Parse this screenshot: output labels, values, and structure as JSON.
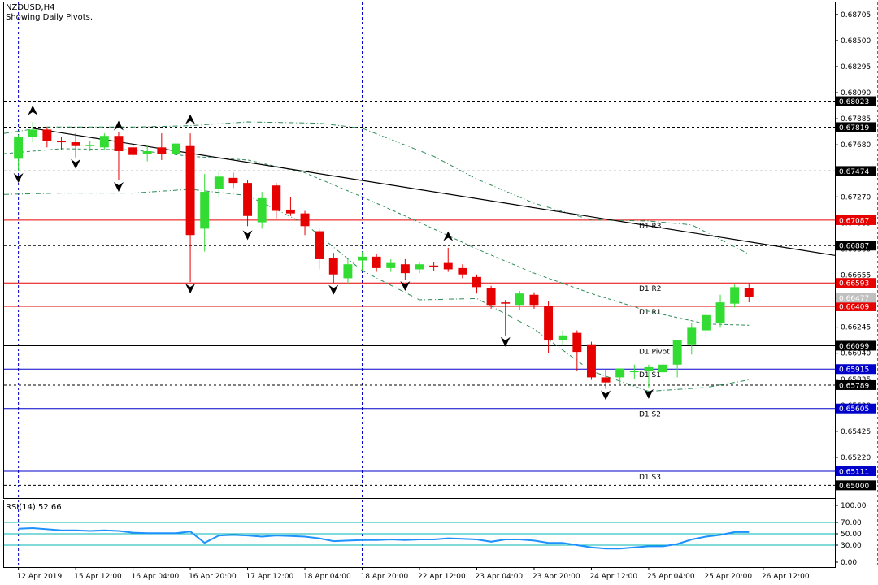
{
  "header": {
    "title": "NZDUSD,H4",
    "subtitle": "Showing Daily Pivots."
  },
  "chart_data": {
    "type": "candlestick",
    "ylim": [
      0.649,
      0.688
    ],
    "x_range": [
      -1,
      57
    ],
    "price_ticks": [
      "0.68705",
      "0.68500",
      "0.68295",
      "0.68090",
      "0.67885",
      "0.67680",
      "0.67475",
      "0.67270",
      "0.67065",
      "0.66860",
      "0.66655",
      "0.66450",
      "0.66245",
      "0.66040",
      "0.65835",
      "0.65630",
      "0.65425",
      "0.65220",
      "0.65015"
    ],
    "time_labels": [
      {
        "i": 0,
        "label": "12 Apr 2019"
      },
      {
        "i": 4,
        "label": "15 Apr 12:00"
      },
      {
        "i": 8,
        "label": "16 Apr 04:00"
      },
      {
        "i": 12,
        "label": "16 Apr 20:00"
      },
      {
        "i": 16,
        "label": "17 Apr 12:00"
      },
      {
        "i": 20,
        "label": "18 Apr 04:00"
      },
      {
        "i": 24,
        "label": "18 Apr 20:00"
      },
      {
        "i": 28,
        "label": "22 Apr 12:00"
      },
      {
        "i": 32,
        "label": "23 Apr 04:00"
      },
      {
        "i": 36,
        "label": "23 Apr 20:00"
      },
      {
        "i": 40,
        "label": "24 Apr 12:00"
      },
      {
        "i": 44,
        "label": "25 Apr 04:00"
      },
      {
        "i": 48,
        "label": "25 Apr 20:00"
      },
      {
        "i": 52,
        "label": "26 Apr 12:00"
      }
    ],
    "vertical_day_lines": [
      0,
      24,
      60
    ],
    "colors": {
      "bull": "#32dc32",
      "bear": "#e60000",
      "pivot_red": "#e60000",
      "pivot_black": "#000000",
      "pivot_blue": "#0000c8",
      "rsi": "#1e90ff",
      "rsi_levels": "#00b4b4",
      "bands": "#2e8b57"
    },
    "candles": [
      {
        "o": 0.6757,
        "h": 0.6776,
        "l": 0.6747,
        "c": 0.6774
      },
      {
        "o": 0.6774,
        "h": 0.6786,
        "l": 0.677,
        "c": 0.678
      },
      {
        "o": 0.678,
        "h": 0.6782,
        "l": 0.6766,
        "c": 0.6771
      },
      {
        "o": 0.6771,
        "h": 0.6774,
        "l": 0.6764,
        "c": 0.677
      },
      {
        "o": 0.677,
        "h": 0.6777,
        "l": 0.6758,
        "c": 0.6767
      },
      {
        "o": 0.6767,
        "h": 0.6771,
        "l": 0.6763,
        "c": 0.6768
      },
      {
        "o": 0.6766,
        "h": 0.6777,
        "l": 0.6764,
        "c": 0.6775
      },
      {
        "o": 0.6775,
        "h": 0.6778,
        "l": 0.674,
        "c": 0.6763
      },
      {
        "o": 0.6766,
        "h": 0.6769,
        "l": 0.6758,
        "c": 0.676
      },
      {
        "o": 0.6761,
        "h": 0.6768,
        "l": 0.6755,
        "c": 0.6763
      },
      {
        "o": 0.6766,
        "h": 0.6777,
        "l": 0.6756,
        "c": 0.6761
      },
      {
        "o": 0.6761,
        "h": 0.6775,
        "l": 0.6759,
        "c": 0.6769
      },
      {
        "o": 0.6767,
        "h": 0.6777,
        "l": 0.666,
        "c": 0.6697
      },
      {
        "o": 0.6702,
        "h": 0.6745,
        "l": 0.6684,
        "c": 0.6731
      },
      {
        "o": 0.6733,
        "h": 0.6747,
        "l": 0.6727,
        "c": 0.6743
      },
      {
        "o": 0.6742,
        "h": 0.6746,
        "l": 0.6734,
        "c": 0.6738
      },
      {
        "o": 0.6738,
        "h": 0.674,
        "l": 0.6704,
        "c": 0.6712
      },
      {
        "o": 0.6707,
        "h": 0.6731,
        "l": 0.6702,
        "c": 0.6726
      },
      {
        "o": 0.6736,
        "h": 0.6738,
        "l": 0.671,
        "c": 0.6716
      },
      {
        "o": 0.6717,
        "h": 0.6727,
        "l": 0.6712,
        "c": 0.6714
      },
      {
        "o": 0.6714,
        "h": 0.6716,
        "l": 0.6697,
        "c": 0.6704
      },
      {
        "o": 0.67,
        "h": 0.6702,
        "l": 0.667,
        "c": 0.6678
      },
      {
        "o": 0.6679,
        "h": 0.6683,
        "l": 0.6659,
        "c": 0.6666
      },
      {
        "o": 0.6663,
        "h": 0.6678,
        "l": 0.6659,
        "c": 0.6674
      },
      {
        "o": 0.6677,
        "h": 0.6684,
        "l": 0.6669,
        "c": 0.668
      },
      {
        "o": 0.668,
        "h": 0.6682,
        "l": 0.6668,
        "c": 0.6671
      },
      {
        "o": 0.6671,
        "h": 0.6678,
        "l": 0.6668,
        "c": 0.6675
      },
      {
        "o": 0.6674,
        "h": 0.6678,
        "l": 0.6662,
        "c": 0.6667
      },
      {
        "o": 0.667,
        "h": 0.6676,
        "l": 0.6667,
        "c": 0.6674
      },
      {
        "o": 0.6673,
        "h": 0.6676,
        "l": 0.6669,
        "c": 0.6672
      },
      {
        "o": 0.6675,
        "h": 0.6687,
        "l": 0.6668,
        "c": 0.667
      },
      {
        "o": 0.6671,
        "h": 0.6674,
        "l": 0.6663,
        "c": 0.6666
      },
      {
        "o": 0.6664,
        "h": 0.6666,
        "l": 0.6651,
        "c": 0.6656
      },
      {
        "o": 0.6655,
        "h": 0.6657,
        "l": 0.6639,
        "c": 0.6642
      },
      {
        "o": 0.6644,
        "h": 0.6646,
        "l": 0.6618,
        "c": 0.6643
      },
      {
        "o": 0.6642,
        "h": 0.6653,
        "l": 0.6638,
        "c": 0.6651
      },
      {
        "o": 0.665,
        "h": 0.6652,
        "l": 0.6639,
        "c": 0.6642
      },
      {
        "o": 0.6641,
        "h": 0.6645,
        "l": 0.6604,
        "c": 0.6614
      },
      {
        "o": 0.6614,
        "h": 0.6622,
        "l": 0.661,
        "c": 0.6618
      },
      {
        "o": 0.662,
        "h": 0.6622,
        "l": 0.659,
        "c": 0.6605
      },
      {
        "o": 0.6611,
        "h": 0.6613,
        "l": 0.6583,
        "c": 0.6585
      },
      {
        "o": 0.6585,
        "h": 0.6591,
        "l": 0.6576,
        "c": 0.6581
      },
      {
        "o": 0.6585,
        "h": 0.6592,
        "l": 0.6579,
        "c": 0.6592
      },
      {
        "o": 0.659,
        "h": 0.6595,
        "l": 0.6584,
        "c": 0.659
      },
      {
        "o": 0.659,
        "h": 0.6595,
        "l": 0.6577,
        "c": 0.6593
      },
      {
        "o": 0.6589,
        "h": 0.66,
        "l": 0.6582,
        "c": 0.6595
      },
      {
        "o": 0.6595,
        "h": 0.6614,
        "l": 0.6585,
        "c": 0.6614
      },
      {
        "o": 0.6611,
        "h": 0.6628,
        "l": 0.6603,
        "c": 0.6624
      },
      {
        "o": 0.6622,
        "h": 0.6636,
        "l": 0.6616,
        "c": 0.6634
      },
      {
        "o": 0.6628,
        "h": 0.665,
        "l": 0.6624,
        "c": 0.6644
      },
      {
        "o": 0.6643,
        "h": 0.6658,
        "l": 0.664,
        "c": 0.6656
      },
      {
        "o": 0.6655,
        "h": 0.6659,
        "l": 0.6644,
        "c": 0.6648
      }
    ],
    "fractals": [
      {
        "i": 1,
        "p": 0.679,
        "dir": "up"
      },
      {
        "i": 0,
        "p": 0.6747,
        "dir": "down"
      },
      {
        "i": 4,
        "p": 0.6758,
        "dir": "down"
      },
      {
        "i": 7,
        "p": 0.674,
        "dir": "down"
      },
      {
        "i": 7,
        "p": 0.6778,
        "dir": "up"
      },
      {
        "i": 12,
        "p": 0.6783,
        "dir": "up"
      },
      {
        "i": 12,
        "p": 0.666,
        "dir": "down"
      },
      {
        "i": 16,
        "p": 0.6702,
        "dir": "down"
      },
      {
        "i": 22,
        "p": 0.6659,
        "dir": "down"
      },
      {
        "i": 27,
        "p": 0.6662,
        "dir": "down"
      },
      {
        "i": 30,
        "p": 0.6691,
        "dir": "up"
      },
      {
        "i": 34,
        "p": 0.6618,
        "dir": "down"
      },
      {
        "i": 41,
        "p": 0.6576,
        "dir": "down"
      },
      {
        "i": 44,
        "p": 0.6577,
        "dir": "down"
      }
    ],
    "trendline": [
      {
        "i": 1,
        "p": 0.6781
      },
      {
        "i": 57,
        "p": 0.6681
      }
    ],
    "upper_band": [
      {
        "i": -1,
        "p": 0.6777
      },
      {
        "i": 2,
        "p": 0.6782
      },
      {
        "i": 8,
        "p": 0.6782
      },
      {
        "i": 12,
        "p": 0.6783
      },
      {
        "i": 16,
        "p": 0.6786
      },
      {
        "i": 21,
        "p": 0.6785
      },
      {
        "i": 24,
        "p": 0.6781
      },
      {
        "i": 29,
        "p": 0.6759
      },
      {
        "i": 32,
        "p": 0.6741
      },
      {
        "i": 36,
        "p": 0.6722
      },
      {
        "i": 40,
        "p": 0.6709
      },
      {
        "i": 44,
        "p": 0.6708
      },
      {
        "i": 47,
        "p": 0.6705
      },
      {
        "i": 51,
        "p": 0.6682
      }
    ],
    "middle_band": [
      {
        "i": -1,
        "p": 0.6761
      },
      {
        "i": 3,
        "p": 0.6765
      },
      {
        "i": 8,
        "p": 0.6764
      },
      {
        "i": 12,
        "p": 0.6759
      },
      {
        "i": 16,
        "p": 0.6756
      },
      {
        "i": 20,
        "p": 0.6746
      },
      {
        "i": 24,
        "p": 0.6727
      },
      {
        "i": 28,
        "p": 0.6707
      },
      {
        "i": 32,
        "p": 0.6686
      },
      {
        "i": 36,
        "p": 0.6667
      },
      {
        "i": 40,
        "p": 0.6651
      },
      {
        "i": 44,
        "p": 0.6637
      },
      {
        "i": 48,
        "p": 0.6627
      },
      {
        "i": 51,
        "p": 0.6626
      }
    ],
    "lower_band": [
      {
        "i": -1,
        "p": 0.6729
      },
      {
        "i": 3,
        "p": 0.673
      },
      {
        "i": 8,
        "p": 0.673
      },
      {
        "i": 12,
        "p": 0.6733
      },
      {
        "i": 16,
        "p": 0.6728
      },
      {
        "i": 20,
        "p": 0.6706
      },
      {
        "i": 24,
        "p": 0.6669
      },
      {
        "i": 28,
        "p": 0.6646
      },
      {
        "i": 32,
        "p": 0.6647
      },
      {
        "i": 36,
        "p": 0.6623
      },
      {
        "i": 40,
        "p": 0.659
      },
      {
        "i": 44,
        "p": 0.6574
      },
      {
        "i": 48,
        "p": 0.6577
      },
      {
        "i": 51,
        "p": 0.6583
      }
    ],
    "pivot_levels": [
      {
        "label": "D1 R3",
        "value": 0.67087,
        "tag": "0.67087",
        "color": "red",
        "style": "solid"
      },
      {
        "label": "D1 R2",
        "value": 0.66593,
        "tag": "0.66593",
        "color": "red",
        "style": "solid"
      },
      {
        "label": "D1 R1",
        "value": 0.66409,
        "tag": "0.66409",
        "color": "red",
        "style": "solid"
      },
      {
        "label": "D1 Pivot",
        "value": 0.66099,
        "tag": "0.66099",
        "color": "black",
        "style": "solid"
      },
      {
        "label": "D1 S1",
        "value": 0.65915,
        "tag": "0.65915",
        "color": "blue",
        "style": "solid"
      },
      {
        "label": "D1 S2",
        "value": 0.65605,
        "tag": "0.65605",
        "color": "blue",
        "style": "solid"
      },
      {
        "label": "D1 S3",
        "value": 0.65111,
        "tag": "0.65111",
        "color": "blue",
        "style": "solid"
      }
    ],
    "dashed_levels": [
      {
        "value": 0.68023,
        "tag": "0.68023"
      },
      {
        "value": 0.67819,
        "tag": "0.67819"
      },
      {
        "value": 0.67474,
        "tag": "0.67474"
      },
      {
        "value": 0.66887,
        "tag": "0.66887"
      },
      {
        "value": 0.65789,
        "tag": "0.65789"
      },
      {
        "value": 0.65,
        "tag": "0.65000"
      }
    ],
    "current_price": {
      "value": 0.66477,
      "tag": "0.66477"
    },
    "rsi": {
      "label": "RSI(14) 52.66",
      "ylim": [
        0,
        100
      ],
      "ticks": [
        "100.00",
        "70.00",
        "50.00",
        "30.00",
        "0.00"
      ],
      "levels": [
        70,
        50,
        30
      ],
      "values": [
        59,
        60,
        58,
        56,
        56,
        55,
        56,
        55,
        52,
        51,
        51,
        51,
        54,
        34,
        47,
        48,
        47,
        45,
        47,
        46,
        45,
        42,
        37,
        38,
        39,
        39,
        40,
        39,
        40,
        40,
        42,
        41,
        40,
        36,
        40,
        40,
        38,
        34,
        34,
        30,
        26,
        24,
        24,
        26,
        28,
        28,
        32,
        40,
        45,
        48,
        53,
        53
      ]
    }
  }
}
